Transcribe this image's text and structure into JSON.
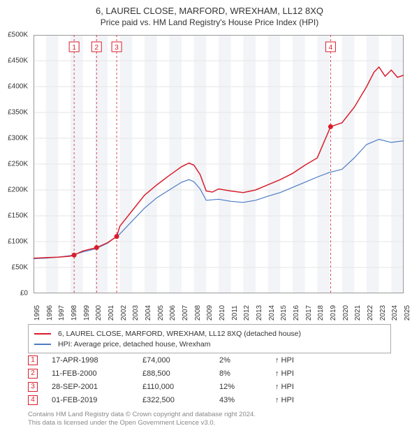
{
  "title": "6, LAUREL CLOSE, MARFORD, WREXHAM, LL12 8XQ",
  "subtitle": "Price paid vs. HM Land Registry's House Price Index (HPI)",
  "chart": {
    "type": "line",
    "background_color": "#ffffff",
    "grid_shade_color": "#f2f4f7",
    "grid_line_color": "#e6e6e6",
    "plot_border_color": "#999999",
    "y": {
      "min": 0,
      "max": 500000,
      "tick_step": 50000,
      "labels": [
        "£0",
        "£50K",
        "£100K",
        "£150K",
        "£200K",
        "£250K",
        "£300K",
        "£350K",
        "£400K",
        "£450K",
        "£500K"
      ],
      "label_fontsize": 10
    },
    "x": {
      "min": 1995,
      "max": 2025,
      "ticks": [
        1995,
        1996,
        1997,
        1998,
        1999,
        2000,
        2001,
        2002,
        2003,
        2004,
        2005,
        2006,
        2007,
        2008,
        2009,
        2010,
        2011,
        2012,
        2013,
        2014,
        2015,
        2016,
        2017,
        2018,
        2019,
        2020,
        2021,
        2022,
        2023,
        2024,
        2025
      ],
      "label_fontsize": 10
    },
    "series": [
      {
        "name": "property",
        "label": "6, LAUREL CLOSE, MARFORD, WREXHAM, LL12 8XQ (detached house)",
        "color": "#d81e2c",
        "line_width": 1.5,
        "data": [
          [
            1995,
            68000
          ],
          [
            1996,
            69000
          ],
          [
            1997,
            70000
          ],
          [
            1998,
            72000
          ],
          [
            1998.29,
            74000
          ],
          [
            1999,
            82000
          ],
          [
            2000.11,
            88500
          ],
          [
            2001,
            98000
          ],
          [
            2001.74,
            110000
          ],
          [
            2002,
            130000
          ],
          [
            2003,
            160000
          ],
          [
            2004,
            190000
          ],
          [
            2005,
            210000
          ],
          [
            2006,
            228000
          ],
          [
            2007,
            245000
          ],
          [
            2007.6,
            252000
          ],
          [
            2008,
            248000
          ],
          [
            2008.5,
            230000
          ],
          [
            2009,
            198000
          ],
          [
            2009.5,
            196000
          ],
          [
            2010,
            202000
          ],
          [
            2011,
            198000
          ],
          [
            2012,
            195000
          ],
          [
            2013,
            200000
          ],
          [
            2014,
            210000
          ],
          [
            2015,
            220000
          ],
          [
            2016,
            232000
          ],
          [
            2017,
            248000
          ],
          [
            2018,
            262000
          ],
          [
            2019.08,
            322500
          ],
          [
            2020,
            330000
          ],
          [
            2021,
            360000
          ],
          [
            2022,
            400000
          ],
          [
            2022.6,
            428000
          ],
          [
            2023,
            438000
          ],
          [
            2023.5,
            420000
          ],
          [
            2024,
            432000
          ],
          [
            2024.5,
            418000
          ],
          [
            2025,
            422000
          ]
        ]
      },
      {
        "name": "hpi",
        "label": "HPI: Average price, detached house, Wrexham",
        "color": "#4d7bc4",
        "line_width": 1.2,
        "data": [
          [
            1995,
            67000
          ],
          [
            1996,
            68000
          ],
          [
            1997,
            70000
          ],
          [
            1998,
            73000
          ],
          [
            1999,
            80000
          ],
          [
            2000,
            86000
          ],
          [
            2001,
            97000
          ],
          [
            2002,
            115000
          ],
          [
            2003,
            140000
          ],
          [
            2004,
            165000
          ],
          [
            2005,
            185000
          ],
          [
            2006,
            200000
          ],
          [
            2007,
            215000
          ],
          [
            2007.6,
            220000
          ],
          [
            2008,
            216000
          ],
          [
            2008.5,
            202000
          ],
          [
            2009,
            180000
          ],
          [
            2010,
            182000
          ],
          [
            2011,
            178000
          ],
          [
            2012,
            176000
          ],
          [
            2013,
            180000
          ],
          [
            2014,
            188000
          ],
          [
            2015,
            195000
          ],
          [
            2016,
            205000
          ],
          [
            2017,
            215000
          ],
          [
            2018,
            225000
          ],
          [
            2019,
            234000
          ],
          [
            2020,
            240000
          ],
          [
            2021,
            262000
          ],
          [
            2022,
            288000
          ],
          [
            2023,
            298000
          ],
          [
            2024,
            292000
          ],
          [
            2025,
            295000
          ]
        ]
      }
    ],
    "sale_markers": [
      {
        "n": "1",
        "year": 1998.29,
        "price": 74000,
        "date": "17-APR-1998",
        "pct": "2%",
        "color": "#d81e2c"
      },
      {
        "n": "2",
        "year": 2000.11,
        "price": 88500,
        "date": "11-FEB-2000",
        "pct": "8%",
        "color": "#d81e2c"
      },
      {
        "n": "3",
        "year": 2001.74,
        "price": 110000,
        "date": "28-SEP-2001",
        "pct": "12%",
        "color": "#d81e2c"
      },
      {
        "n": "4",
        "year": 2019.08,
        "price": 322500,
        "date": "01-FEB-2019",
        "pct": "43%",
        "color": "#d81e2c"
      }
    ],
    "marker_dot_color": "#d81e2c",
    "marker_dot_radius": 3.5,
    "marker_dash_color": "#d81e2c",
    "hpi_suffix": "↑ HPI"
  },
  "legend": {
    "border_color": "#aaaaaa",
    "fontsize": 10.5
  },
  "footer": {
    "line1": "Contains HM Land Registry data © Crown copyright and database right 2024.",
    "line2": "This data is licensed under the Open Government Licence v3.0.",
    "color": "#888888"
  }
}
